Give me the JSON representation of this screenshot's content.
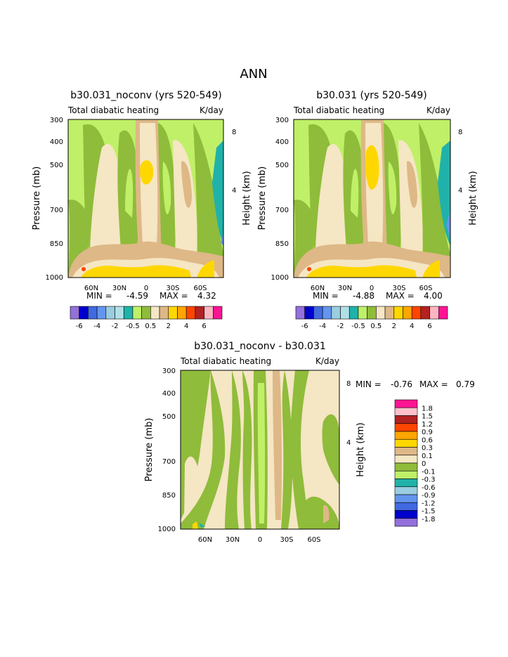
{
  "page_title": "ANN",
  "chart_data": [
    {
      "type": "contour",
      "title": "b30.031_noconv (yrs 520-549)",
      "subtitle_left": "Total diabatic heating",
      "subtitle_right": "K/day",
      "ylabel": "Pressure (mb)",
      "ylabel_right": "Height (km)",
      "y_ticks": [
        "300",
        "400",
        "500",
        "700",
        "850",
        "1000"
      ],
      "y_right_ticks": [
        "8",
        "4"
      ],
      "x_ticks": [
        "60N",
        "30N",
        "0",
        "30S",
        "60S"
      ],
      "min_label": "MIN =",
      "min_value": "-4.59",
      "max_label": "MAX =",
      "max_value": "4.32",
      "colorbar_labels": [
        "-6",
        "-4",
        "-2",
        "-0.5",
        "0.5",
        "2",
        "4",
        "6"
      ]
    },
    {
      "type": "contour",
      "title": "b30.031 (yrs 520-549)",
      "subtitle_left": "Total diabatic heating",
      "subtitle_right": "K/day",
      "ylabel": "Pressure (mb)",
      "ylabel_right": "Height (km)",
      "y_ticks": [
        "300",
        "400",
        "500",
        "700",
        "850",
        "1000"
      ],
      "y_right_ticks": [
        "8",
        "4"
      ],
      "x_ticks": [
        "60N",
        "30N",
        "0",
        "30S",
        "60S"
      ],
      "min_label": "MIN =",
      "min_value": "-4.88",
      "max_label": "MAX =",
      "max_value": "4.00",
      "colorbar_labels": [
        "-6",
        "-4",
        "-2",
        "-0.5",
        "0.5",
        "2",
        "4",
        "6"
      ]
    },
    {
      "type": "contour",
      "title": "b30.031_noconv - b30.031",
      "subtitle_left": "Total diabatic heating",
      "subtitle_right": "K/day",
      "ylabel": "Pressure (mb)",
      "ylabel_right": "Height (km)",
      "y_ticks": [
        "300",
        "400",
        "500",
        "700",
        "850",
        "1000"
      ],
      "y_right_ticks": [
        "8",
        "4"
      ],
      "x_ticks": [
        "60N",
        "30N",
        "0",
        "30S",
        "60S"
      ],
      "min_label": "MIN =",
      "min_value": "-0.76",
      "max_label": "MAX =",
      "max_value": "0.79",
      "colorbar_labels": [
        "1.8",
        "1.5",
        "1.2",
        "0.9",
        "0.6",
        "0.3",
        "0.1",
        "0",
        "-0.1",
        "-0.3",
        "-0.6",
        "-0.9",
        "-1.2",
        "-1.5",
        "-1.8"
      ]
    }
  ],
  "colors": {
    "abs_palette": [
      "#9370db",
      "#0000cd",
      "#4169e1",
      "#6495ed",
      "#9acde0",
      "#b0e0e6",
      "#20b2aa",
      "#bff068",
      "#8fbc3a",
      "#f5e6c4",
      "#deb887",
      "#ffd700",
      "#ffa500",
      "#ff4500",
      "#b22222",
      "#ffb6c1",
      "#ff1493"
    ],
    "diff_palette": [
      "#ff1493",
      "#ffc0cb",
      "#b22222",
      "#ff4500",
      "#ffa500",
      "#ffd700",
      "#deb887",
      "#f5e6c4",
      "#8fbc3a",
      "#bff068",
      "#20b2aa",
      "#9acde0",
      "#6495ed",
      "#4169e1",
      "#0000cd",
      "#9370db"
    ]
  }
}
